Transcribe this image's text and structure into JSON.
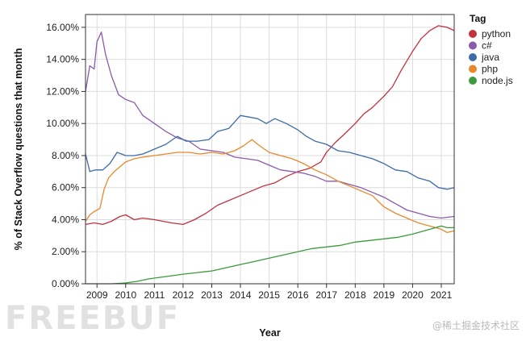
{
  "chart_data": {
    "type": "line",
    "xlabel": "Year",
    "ylabel": "% of Stack Overflow questions that month",
    "xlim": [
      2008.6,
      2021.45
    ],
    "ylim": [
      0,
      16.8
    ],
    "x_ticks": [
      "2009",
      "2010",
      "2011",
      "2012",
      "2013",
      "2014",
      "2015",
      "2016",
      "2017",
      "2018",
      "2019",
      "2020",
      "2021"
    ],
    "y_ticks": [
      "0.00%",
      "2.00%",
      "4.00%",
      "6.00%",
      "8.00%",
      "10.00%",
      "12.00%",
      "14.00%",
      "16.00%"
    ],
    "y_tick_values": [
      0,
      2,
      4,
      6,
      8,
      10,
      12,
      14,
      16
    ],
    "grid": true,
    "legend": {
      "title": "Tag",
      "position": "right"
    },
    "series": [
      {
        "name": "python",
        "color": "#c3323f",
        "points": [
          [
            2008.6,
            3.7
          ],
          [
            2008.9,
            3.8
          ],
          [
            2009.2,
            3.7
          ],
          [
            2009.5,
            3.9
          ],
          [
            2009.8,
            4.2
          ],
          [
            2010.0,
            4.3
          ],
          [
            2010.3,
            4.0
          ],
          [
            2010.6,
            4.1
          ],
          [
            2011.0,
            4.0
          ],
          [
            2011.3,
            3.9
          ],
          [
            2011.6,
            3.8
          ],
          [
            2012.0,
            3.7
          ],
          [
            2012.4,
            4.0
          ],
          [
            2012.8,
            4.4
          ],
          [
            2013.2,
            4.9
          ],
          [
            2013.6,
            5.2
          ],
          [
            2014.0,
            5.5
          ],
          [
            2014.4,
            5.8
          ],
          [
            2014.8,
            6.1
          ],
          [
            2015.2,
            6.3
          ],
          [
            2015.6,
            6.7
          ],
          [
            2016.0,
            7.0
          ],
          [
            2016.4,
            7.2
          ],
          [
            2016.8,
            7.6
          ],
          [
            2017.0,
            8.2
          ],
          [
            2017.3,
            8.8
          ],
          [
            2017.6,
            9.3
          ],
          [
            2018.0,
            10.0
          ],
          [
            2018.3,
            10.6
          ],
          [
            2018.6,
            11.0
          ],
          [
            2019.0,
            11.7
          ],
          [
            2019.3,
            12.3
          ],
          [
            2019.6,
            13.3
          ],
          [
            2020.0,
            14.5
          ],
          [
            2020.3,
            15.3
          ],
          [
            2020.6,
            15.8
          ],
          [
            2020.9,
            16.1
          ],
          [
            2021.2,
            16.0
          ],
          [
            2021.45,
            15.8
          ]
        ]
      },
      {
        "name": "c#",
        "color": "#8a5aab",
        "points": [
          [
            2008.6,
            12.0
          ],
          [
            2008.75,
            13.6
          ],
          [
            2008.9,
            13.4
          ],
          [
            2009.0,
            15.1
          ],
          [
            2009.15,
            15.7
          ],
          [
            2009.3,
            14.3
          ],
          [
            2009.5,
            13.0
          ],
          [
            2009.75,
            11.8
          ],
          [
            2010.0,
            11.5
          ],
          [
            2010.3,
            11.3
          ],
          [
            2010.6,
            10.5
          ],
          [
            2011.0,
            10.0
          ],
          [
            2011.4,
            9.5
          ],
          [
            2011.8,
            9.1
          ],
          [
            2012.2,
            8.9
          ],
          [
            2012.6,
            8.4
          ],
          [
            2013.0,
            8.3
          ],
          [
            2013.4,
            8.2
          ],
          [
            2013.8,
            7.9
          ],
          [
            2014.2,
            7.8
          ],
          [
            2014.6,
            7.7
          ],
          [
            2015.0,
            7.4
          ],
          [
            2015.4,
            7.1
          ],
          [
            2015.8,
            7.0
          ],
          [
            2016.2,
            6.9
          ],
          [
            2016.6,
            6.7
          ],
          [
            2017.0,
            6.4
          ],
          [
            2017.4,
            6.4
          ],
          [
            2017.8,
            6.2
          ],
          [
            2018.2,
            6.0
          ],
          [
            2018.6,
            5.7
          ],
          [
            2019.0,
            5.4
          ],
          [
            2019.4,
            5.0
          ],
          [
            2019.8,
            4.6
          ],
          [
            2020.2,
            4.4
          ],
          [
            2020.6,
            4.2
          ],
          [
            2021.0,
            4.1
          ],
          [
            2021.45,
            4.2
          ]
        ]
      },
      {
        "name": "java",
        "color": "#3d6aaa",
        "points": [
          [
            2008.6,
            8.1
          ],
          [
            2008.75,
            7.0
          ],
          [
            2008.95,
            7.1
          ],
          [
            2009.2,
            7.1
          ],
          [
            2009.45,
            7.5
          ],
          [
            2009.7,
            8.2
          ],
          [
            2010.0,
            8.0
          ],
          [
            2010.3,
            8.0
          ],
          [
            2010.6,
            8.1
          ],
          [
            2011.0,
            8.4
          ],
          [
            2011.4,
            8.7
          ],
          [
            2011.8,
            9.2
          ],
          [
            2012.1,
            8.9
          ],
          [
            2012.5,
            8.9
          ],
          [
            2012.9,
            9.0
          ],
          [
            2013.2,
            9.5
          ],
          [
            2013.6,
            9.7
          ],
          [
            2014.0,
            10.5
          ],
          [
            2014.3,
            10.4
          ],
          [
            2014.6,
            10.3
          ],
          [
            2014.9,
            10.0
          ],
          [
            2015.2,
            10.3
          ],
          [
            2015.6,
            10.0
          ],
          [
            2016.0,
            9.6
          ],
          [
            2016.3,
            9.2
          ],
          [
            2016.6,
            8.9
          ],
          [
            2017.0,
            8.7
          ],
          [
            2017.4,
            8.3
          ],
          [
            2017.8,
            8.2
          ],
          [
            2018.2,
            8.0
          ],
          [
            2018.6,
            7.8
          ],
          [
            2019.0,
            7.5
          ],
          [
            2019.4,
            7.1
          ],
          [
            2019.8,
            7.0
          ],
          [
            2020.2,
            6.6
          ],
          [
            2020.6,
            6.4
          ],
          [
            2020.9,
            6.0
          ],
          [
            2021.2,
            5.9
          ],
          [
            2021.45,
            6.0
          ]
        ]
      },
      {
        "name": "php",
        "color": "#e8882a",
        "points": [
          [
            2008.6,
            3.9
          ],
          [
            2008.75,
            4.3
          ],
          [
            2008.9,
            4.5
          ],
          [
            2009.1,
            4.7
          ],
          [
            2009.25,
            5.9
          ],
          [
            2009.4,
            6.6
          ],
          [
            2009.6,
            7.0
          ],
          [
            2009.8,
            7.3
          ],
          [
            2010.0,
            7.6
          ],
          [
            2010.3,
            7.8
          ],
          [
            2010.6,
            7.9
          ],
          [
            2011.0,
            8.0
          ],
          [
            2011.4,
            8.1
          ],
          [
            2011.8,
            8.2
          ],
          [
            2012.2,
            8.2
          ],
          [
            2012.6,
            8.1
          ],
          [
            2013.0,
            8.2
          ],
          [
            2013.4,
            8.1
          ],
          [
            2013.8,
            8.3
          ],
          [
            2014.1,
            8.6
          ],
          [
            2014.4,
            9.0
          ],
          [
            2014.6,
            8.7
          ],
          [
            2015.0,
            8.2
          ],
          [
            2015.4,
            8.0
          ],
          [
            2015.8,
            7.8
          ],
          [
            2016.2,
            7.5
          ],
          [
            2016.6,
            7.1
          ],
          [
            2017.0,
            6.8
          ],
          [
            2017.4,
            6.4
          ],
          [
            2017.8,
            6.1
          ],
          [
            2018.2,
            5.8
          ],
          [
            2018.6,
            5.5
          ],
          [
            2019.0,
            4.8
          ],
          [
            2019.4,
            4.4
          ],
          [
            2019.8,
            4.1
          ],
          [
            2020.2,
            3.8
          ],
          [
            2020.6,
            3.6
          ],
          [
            2021.0,
            3.4
          ],
          [
            2021.2,
            3.2
          ],
          [
            2021.45,
            3.3
          ]
        ]
      },
      {
        "name": "node.js",
        "color": "#3b9a3b",
        "points": [
          [
            2008.6,
            0.0
          ],
          [
            2009.5,
            0.0
          ],
          [
            2010.0,
            0.05
          ],
          [
            2010.4,
            0.15
          ],
          [
            2010.8,
            0.3
          ],
          [
            2011.2,
            0.4
          ],
          [
            2011.6,
            0.5
          ],
          [
            2012.0,
            0.6
          ],
          [
            2012.5,
            0.7
          ],
          [
            2013.0,
            0.8
          ],
          [
            2013.5,
            1.0
          ],
          [
            2014.0,
            1.2
          ],
          [
            2014.5,
            1.4
          ],
          [
            2015.0,
            1.6
          ],
          [
            2015.5,
            1.8
          ],
          [
            2016.0,
            2.0
          ],
          [
            2016.5,
            2.2
          ],
          [
            2017.0,
            2.3
          ],
          [
            2017.5,
            2.4
          ],
          [
            2018.0,
            2.6
          ],
          [
            2018.5,
            2.7
          ],
          [
            2019.0,
            2.8
          ],
          [
            2019.5,
            2.9
          ],
          [
            2020.0,
            3.1
          ],
          [
            2020.4,
            3.3
          ],
          [
            2020.8,
            3.5
          ],
          [
            2021.0,
            3.6
          ],
          [
            2021.2,
            3.5
          ],
          [
            2021.45,
            3.5
          ]
        ]
      }
    ]
  },
  "watermark": "FREEBUF",
  "credit": "@稀土掘金技术社区"
}
